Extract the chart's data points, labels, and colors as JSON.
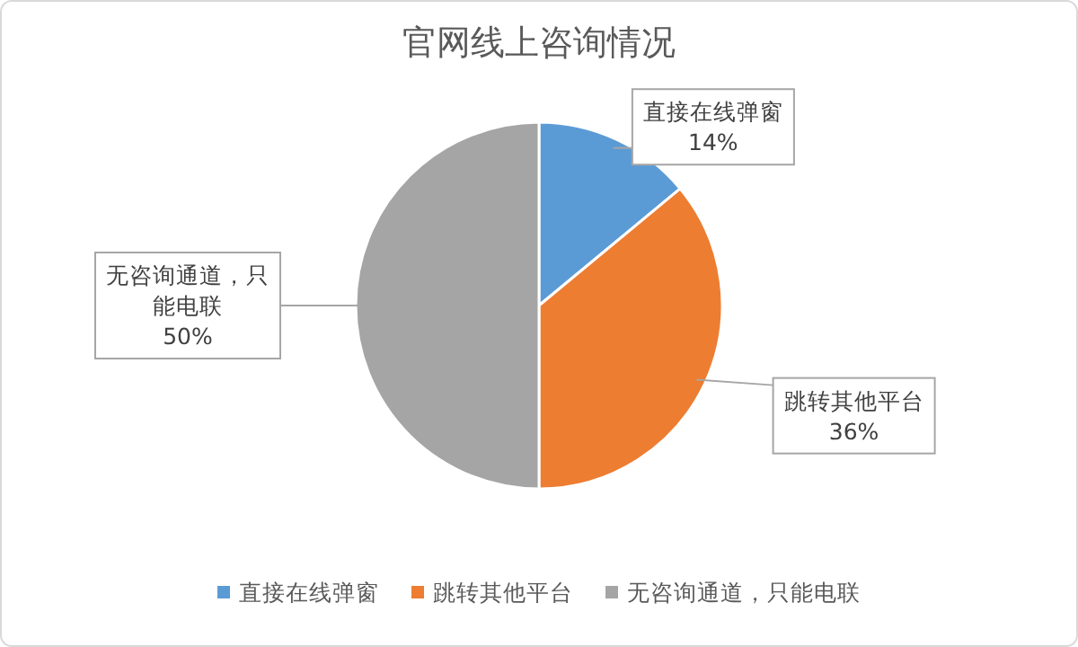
{
  "chart_data": {
    "type": "pie",
    "title": "官网线上咨询情况",
    "categories": [
      "直接在线弹窗",
      "跳转其他平台",
      "无咨询通道，只能电联"
    ],
    "values": [
      14,
      36,
      50
    ],
    "colors": [
      "#5b9bd5",
      "#ed7d31",
      "#a5a5a5"
    ],
    "value_labels": [
      "14%",
      "36%",
      "50%"
    ],
    "legend": "bottom"
  }
}
